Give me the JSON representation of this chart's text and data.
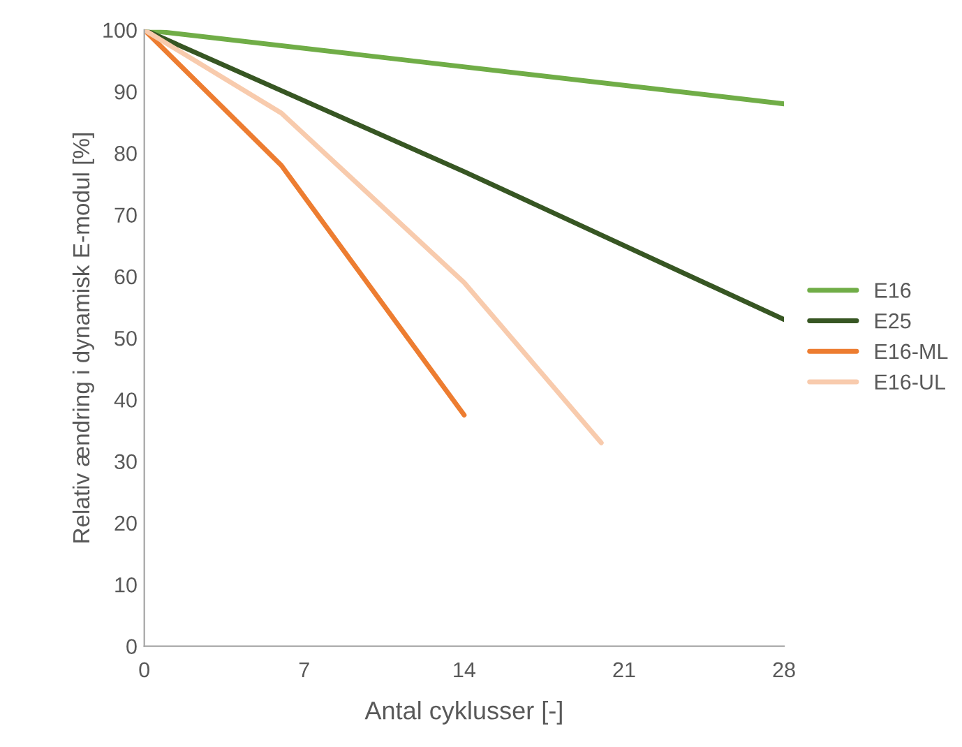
{
  "chart_data": {
    "type": "line",
    "xlabel": "Antal cyklusser [-]",
    "ylabel": "Relativ ændring i dynamisk E-modul [%]",
    "xlim": [
      0,
      28
    ],
    "xticks": [
      0,
      7,
      14,
      21,
      28
    ],
    "ylim": [
      0,
      100
    ],
    "yticks": [
      0,
      10,
      20,
      30,
      40,
      50,
      60,
      70,
      80,
      90,
      100
    ],
    "grid": false,
    "legend": "right",
    "marker": "none",
    "line_style": "solid",
    "series": [
      {
        "name": "E16",
        "color": "#70ad47",
        "x": [
          0,
          28
        ],
        "values": [
          100,
          88
        ]
      },
      {
        "name": "E25",
        "color": "#375623",
        "x": [
          0,
          14,
          28
        ],
        "values": [
          100,
          77,
          53
        ]
      },
      {
        "name": "E16-ML",
        "color": "#ed7d31",
        "x": [
          0,
          6,
          14
        ],
        "values": [
          100,
          78,
          37.5
        ]
      },
      {
        "name": "E16-UL",
        "color": "#f8cbad",
        "x": [
          0,
          6,
          14,
          20
        ],
        "values": [
          100,
          86.5,
          59,
          33
        ]
      }
    ]
  }
}
